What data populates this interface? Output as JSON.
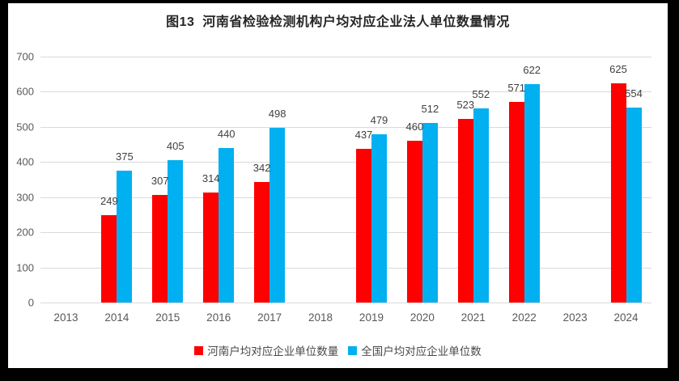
{
  "figure": {
    "title": "图13  河南省检验检测机构户均对应企业法人单位数量情况"
  },
  "chart_data": {
    "type": "bar",
    "title": "图13  河南省检验检测机构户均对应企业法人单位数量情况",
    "categories": [
      "2013",
      "2014",
      "2015",
      "2016",
      "2017",
      "2018",
      "2019",
      "2020",
      "2021",
      "2022",
      "2023",
      "2024"
    ],
    "series": [
      {
        "name": "河南户均对应企业单位数量",
        "color": "#FF0000",
        "values": [
          null,
          249,
          307,
          314,
          342,
          null,
          437,
          460,
          523,
          571,
          null,
          625
        ]
      },
      {
        "name": "全国户均对应企业单位数",
        "color": "#00B0F0",
        "values": [
          null,
          375,
          405,
          440,
          498,
          null,
          479,
          512,
          552,
          622,
          null,
          554
        ]
      }
    ],
    "ylim": [
      0,
      700
    ],
    "yticks": [
      0,
      100,
      200,
      300,
      400,
      500,
      600,
      700
    ],
    "grid": true,
    "legend_position": "bottom",
    "colors": {
      "henan_bar": "#FF0000",
      "national_bar": "#00B0F0",
      "gridline": "#DADADA",
      "axis_text": "#595959",
      "value_label_text": "#3F3F3F",
      "title_text": "#262626",
      "plot_background": "#FFFFFF",
      "outer_frame": "#000000"
    }
  }
}
